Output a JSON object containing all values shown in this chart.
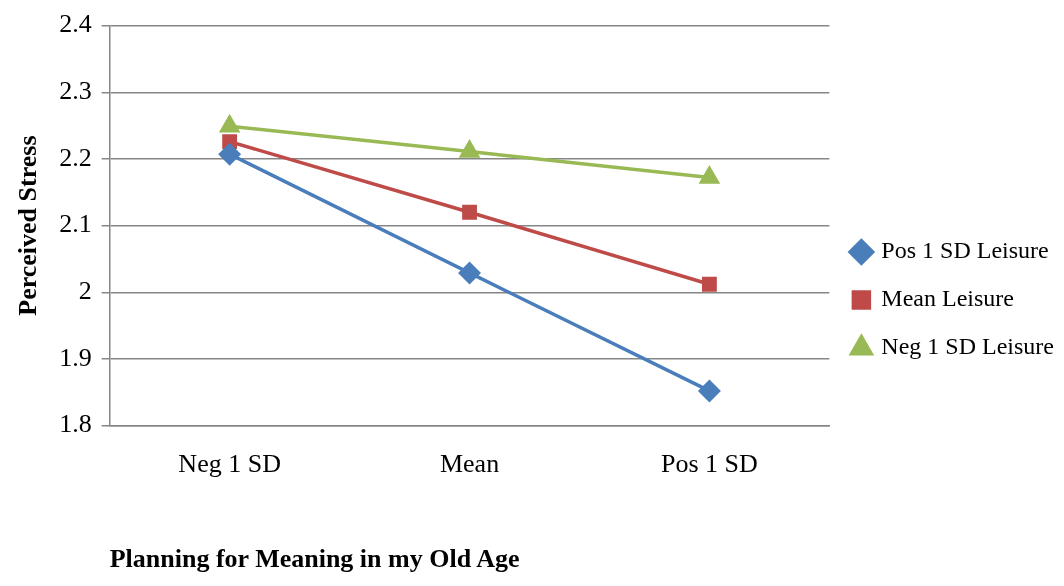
{
  "chart_data": {
    "type": "line",
    "xlabel": "Planning for Meaning in my Old Age",
    "ylabel": "Perceived Stress",
    "categories": [
      "Neg 1 SD",
      "Mean",
      "Pos 1 SD"
    ],
    "series": [
      {
        "name": "Pos 1 SD Leisure",
        "color": "#4a7ebb",
        "marker": "diamond",
        "values": [
          2.207,
          2.029,
          1.852
        ]
      },
      {
        "name": "Mean Leisure",
        "color": "#be4b48",
        "marker": "square",
        "values": [
          2.226,
          2.12,
          2.012
        ]
      },
      {
        "name": "Neg 1 SD Leisure",
        "color": "#98b954",
        "marker": "triangle",
        "values": [
          2.249,
          2.211,
          2.172
        ]
      }
    ],
    "ylim": [
      1.8,
      2.4
    ],
    "yticks": [
      1.8,
      1.9,
      2,
      2.1,
      2.2,
      2.3,
      2.4
    ],
    "grid": "y",
    "legend": "right"
  }
}
